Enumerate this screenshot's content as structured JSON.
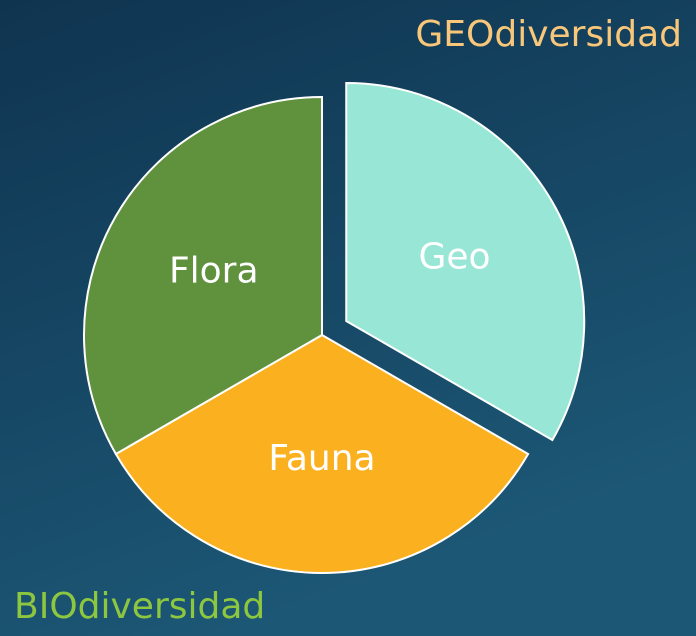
{
  "chart_data": {
    "type": "pie",
    "categories": [
      "Geo",
      "Fauna",
      "Flora"
    ],
    "values": [
      33.3,
      33.3,
      33.3
    ],
    "colors": [
      "#98e6d6",
      "#fbb01f",
      "#60913d"
    ],
    "explode": [
      true,
      false,
      false
    ],
    "annotations": [
      "GEOdiversidad",
      "BIOdiversidad"
    ],
    "annotation_colors": [
      "#f9c77a",
      "#8dc63f"
    ]
  }
}
